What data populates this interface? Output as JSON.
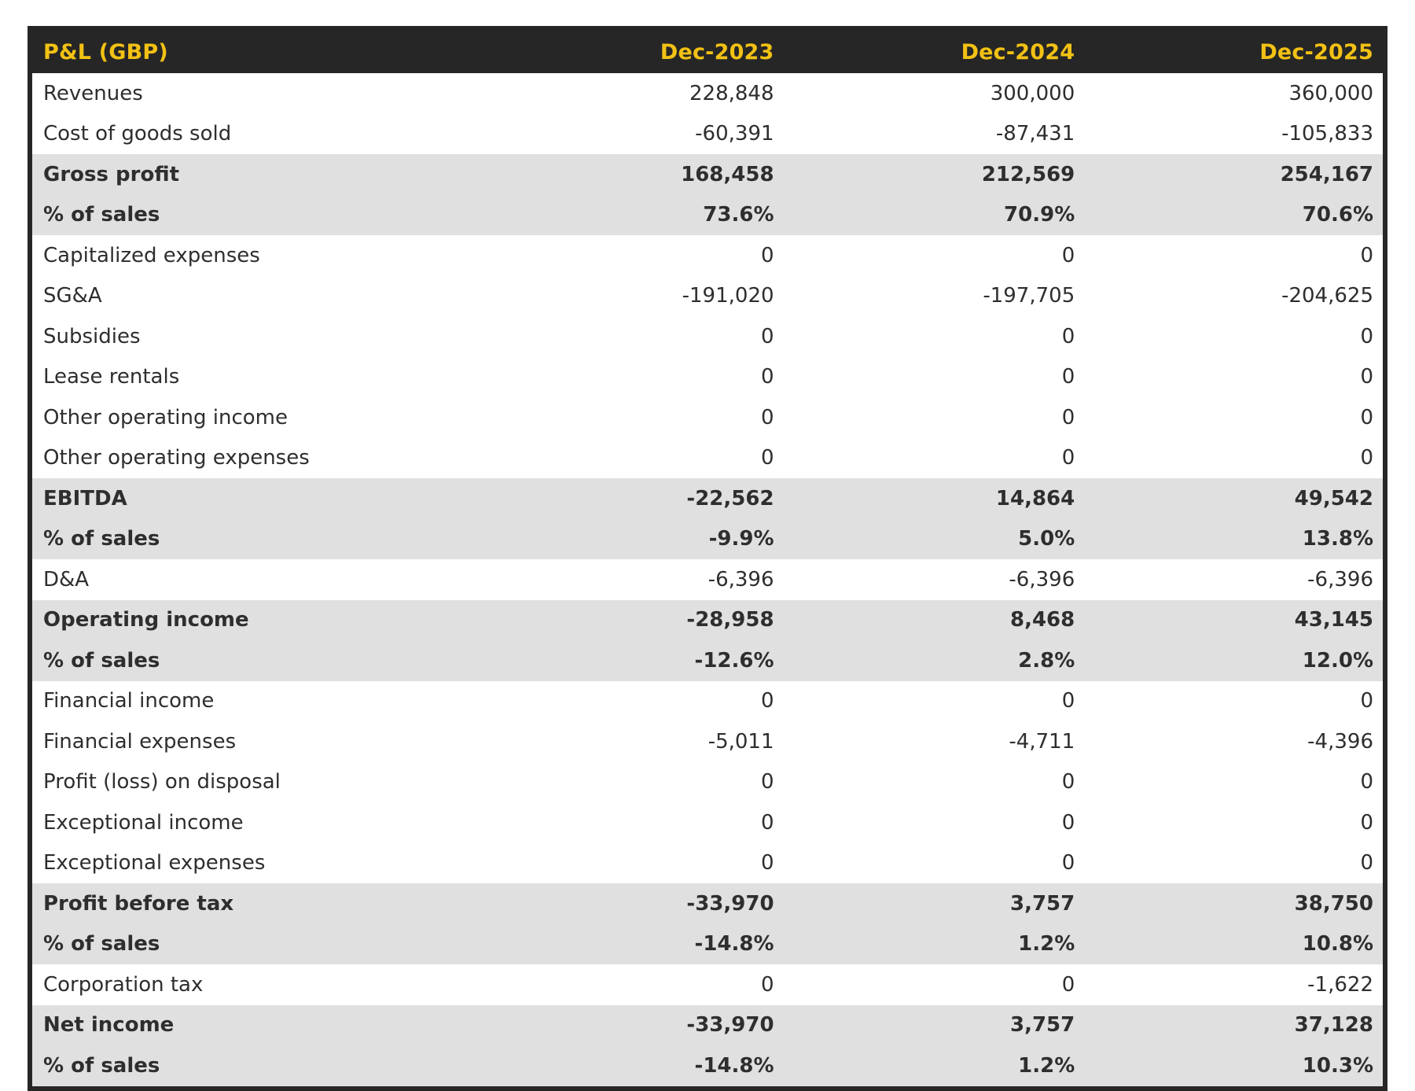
{
  "chart_data": {
    "type": "table",
    "title": "P&L (GBP)",
    "columns": [
      "Dec-2023",
      "Dec-2024",
      "Dec-2025"
    ],
    "rows": [
      {
        "label": "Revenues",
        "values": [
          "228,848",
          "300,000",
          "360,000"
        ],
        "emphasis": false
      },
      {
        "label": "Cost of goods sold",
        "values": [
          "-60,391",
          "-87,431",
          "-105,833"
        ],
        "emphasis": false
      },
      {
        "label": "Gross profit",
        "values": [
          "168,458",
          "212,569",
          "254,167"
        ],
        "emphasis": true
      },
      {
        "label": "% of sales",
        "values": [
          "73.6%",
          "70.9%",
          "70.6%"
        ],
        "emphasis": true
      },
      {
        "label": "Capitalized expenses",
        "values": [
          "0",
          "0",
          "0"
        ],
        "emphasis": false
      },
      {
        "label": "SG&A",
        "values": [
          "-191,020",
          "-197,705",
          "-204,625"
        ],
        "emphasis": false
      },
      {
        "label": "Subsidies",
        "values": [
          "0",
          "0",
          "0"
        ],
        "emphasis": false
      },
      {
        "label": "Lease rentals",
        "values": [
          "0",
          "0",
          "0"
        ],
        "emphasis": false
      },
      {
        "label": "Other operating income",
        "values": [
          "0",
          "0",
          "0"
        ],
        "emphasis": false
      },
      {
        "label": "Other operating expenses",
        "values": [
          "0",
          "0",
          "0"
        ],
        "emphasis": false
      },
      {
        "label": "EBITDA",
        "values": [
          "-22,562",
          "14,864",
          "49,542"
        ],
        "emphasis": true
      },
      {
        "label": "% of sales",
        "values": [
          "-9.9%",
          "5.0%",
          "13.8%"
        ],
        "emphasis": true
      },
      {
        "label": "D&A",
        "values": [
          "-6,396",
          "-6,396",
          "-6,396"
        ],
        "emphasis": false
      },
      {
        "label": "Operating income",
        "values": [
          "-28,958",
          "8,468",
          "43,145"
        ],
        "emphasis": true
      },
      {
        "label": "% of sales",
        "values": [
          "-12.6%",
          "2.8%",
          "12.0%"
        ],
        "emphasis": true
      },
      {
        "label": "Financial income",
        "values": [
          "0",
          "0",
          "0"
        ],
        "emphasis": false
      },
      {
        "label": "Financial expenses",
        "values": [
          "-5,011",
          "-4,711",
          "-4,396"
        ],
        "emphasis": false
      },
      {
        "label": "Profit (loss) on disposal",
        "values": [
          "0",
          "0",
          "0"
        ],
        "emphasis": false
      },
      {
        "label": "Exceptional income",
        "values": [
          "0",
          "0",
          "0"
        ],
        "emphasis": false
      },
      {
        "label": "Exceptional expenses",
        "values": [
          "0",
          "0",
          "0"
        ],
        "emphasis": false
      },
      {
        "label": "Profit before tax",
        "values": [
          "-33,970",
          "3,757",
          "38,750"
        ],
        "emphasis": true
      },
      {
        "label": "% of sales",
        "values": [
          "-14.8%",
          "1.2%",
          "10.8%"
        ],
        "emphasis": true
      },
      {
        "label": "Corporation tax",
        "values": [
          "0",
          "0",
          "-1,622"
        ],
        "emphasis": false
      },
      {
        "label": "Net income",
        "values": [
          "-33,970",
          "3,757",
          "37,128"
        ],
        "emphasis": true
      },
      {
        "label": "% of sales",
        "values": [
          "-14.8%",
          "1.2%",
          "10.3%"
        ],
        "emphasis": true
      }
    ],
    "layout": {
      "value_alignment": "right",
      "emphasis_style": "bold text on gray band",
      "gridlines": "none",
      "legend": "none"
    }
  },
  "colors": {
    "header_bg": "#262626",
    "header_text": "#F2C114",
    "band_bg": "#E0E0E0",
    "row_bg": "#FFFFFF",
    "body_text": "#2E2E2E",
    "border": "#262626",
    "page_bg": "#FFFFFF"
  }
}
